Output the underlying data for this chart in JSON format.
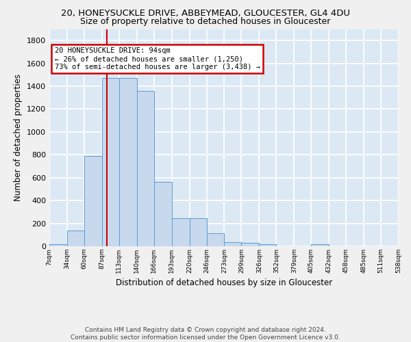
{
  "title_line1": "20, HONEYSUCKLE DRIVE, ABBEYMEAD, GLOUCESTER, GL4 4DU",
  "title_line2": "Size of property relative to detached houses in Gloucester",
  "xlabel": "Distribution of detached houses by size in Gloucester",
  "ylabel": "Number of detached properties",
  "footnote": "Contains HM Land Registry data © Crown copyright and database right 2024.\nContains public sector information licensed under the Open Government Licence v3.0.",
  "bar_edges": [
    7,
    34,
    60,
    87,
    113,
    140,
    166,
    193,
    220,
    246,
    273,
    299,
    326,
    352,
    379,
    405,
    432,
    458,
    485,
    511,
    538
  ],
  "bar_heights": [
    15,
    135,
    790,
    1475,
    1475,
    1360,
    565,
    245,
    245,
    115,
    35,
    28,
    20,
    0,
    0,
    20,
    0,
    0,
    0,
    0,
    0
  ],
  "bar_color": "#c8d9ed",
  "bar_edgecolor": "#5b9bd5",
  "annotation_line1": "20 HONEYSUCKLE DRIVE: 94sqm",
  "annotation_line2": "← 26% of detached houses are smaller (1,250)",
  "annotation_line3": "73% of semi-detached houses are larger (3,438) →",
  "annotation_box_color": "#ffffff",
  "annotation_box_edgecolor": "#cc0000",
  "vline_x": 94,
  "vline_color": "#cc0000",
  "ylim": [
    0,
    1900
  ],
  "yticks": [
    0,
    200,
    400,
    600,
    800,
    1000,
    1200,
    1400,
    1600,
    1800
  ],
  "xtick_labels": [
    "7sqm",
    "34sqm",
    "60sqm",
    "87sqm",
    "113sqm",
    "140sqm",
    "166sqm",
    "193sqm",
    "220sqm",
    "246sqm",
    "273sqm",
    "299sqm",
    "326sqm",
    "352sqm",
    "379sqm",
    "405sqm",
    "432sqm",
    "458sqm",
    "485sqm",
    "511sqm",
    "538sqm"
  ],
  "bg_color": "#dce9f5",
  "fig_color": "#f0f0f0",
  "grid_color": "#ffffff",
  "title1_fontsize": 9.5,
  "title2_fontsize": 9.0,
  "ylabel_fontsize": 8.5,
  "xlabel_fontsize": 8.5,
  "footnote_fontsize": 6.5,
  "ytick_fontsize": 8,
  "xtick_fontsize": 6.5
}
